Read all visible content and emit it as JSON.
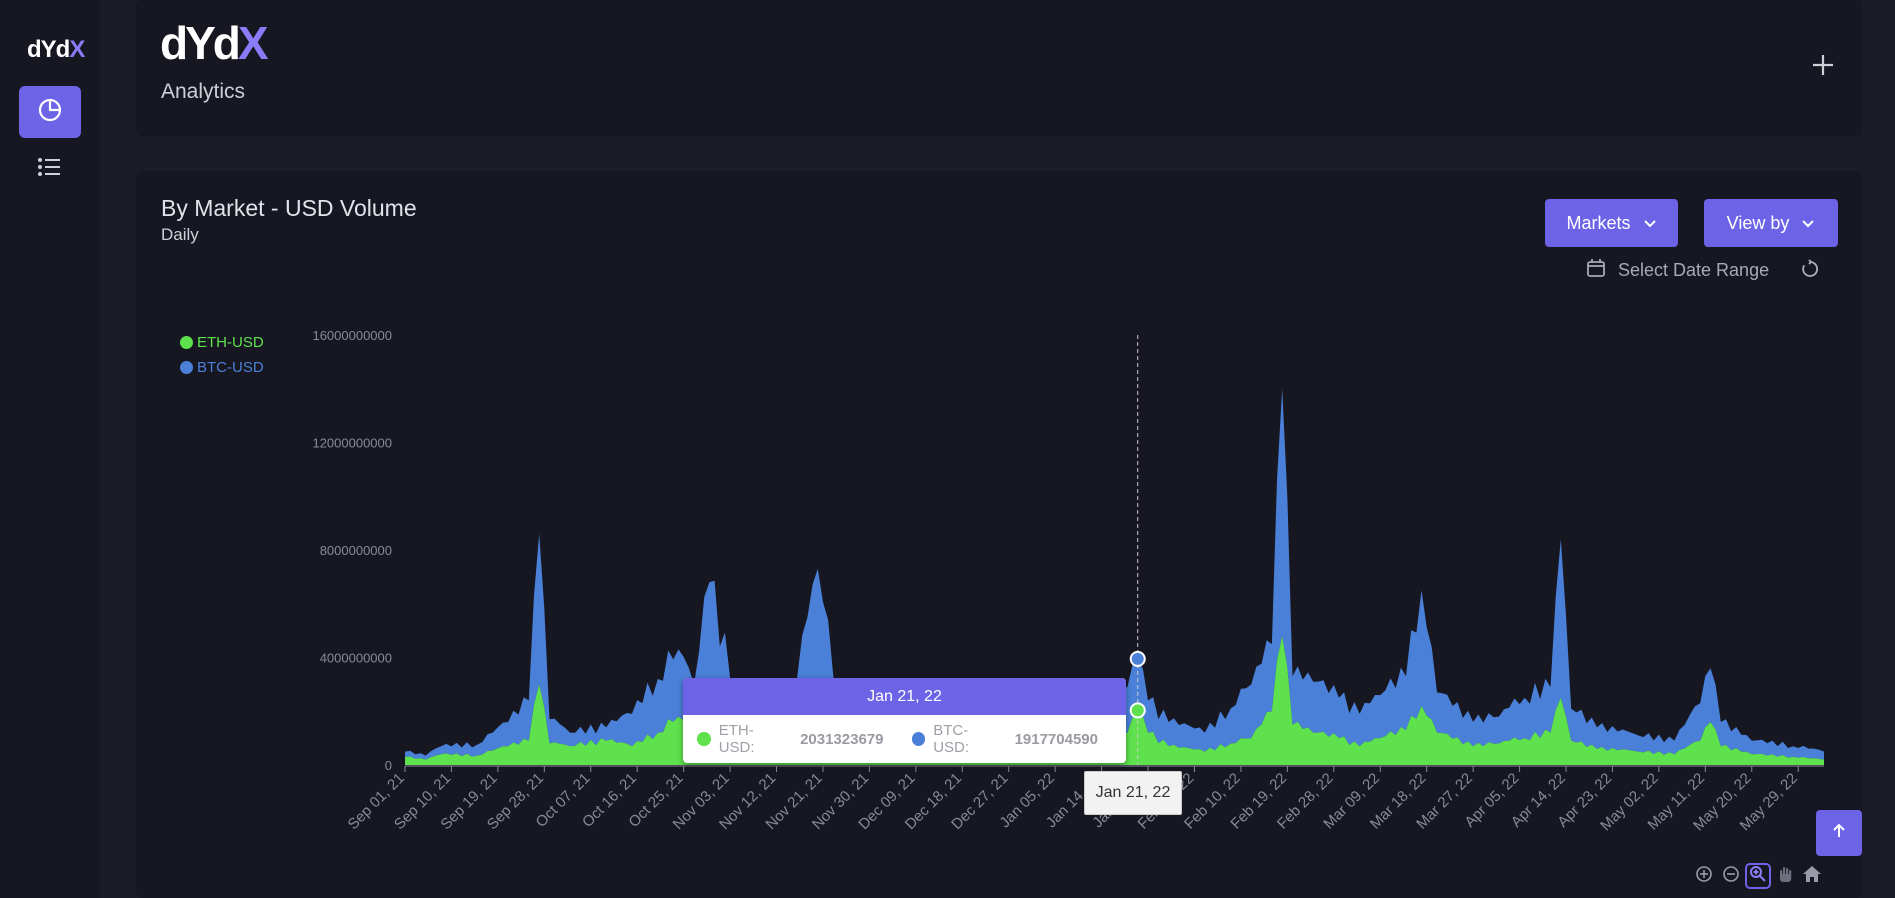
{
  "sidebar": {
    "logo_text": "dYdX",
    "items": [
      {
        "icon": "pie-chart-icon",
        "active": true
      },
      {
        "icon": "list-icon",
        "active": false
      }
    ]
  },
  "header": {
    "brand": "dYdX",
    "title": "Analytics"
  },
  "chart_panel": {
    "title": "By Market - USD Volume",
    "subtitle": "Daily",
    "markets_button": "Markets",
    "viewby_button": "View by",
    "date_range_label": "Select Date Range"
  },
  "tooltip": {
    "date": "Jan 21, 22",
    "eth_label": "ETH-USD:",
    "eth_value": "2031323679",
    "btc_label": "BTC-USD:",
    "btc_value": "1917704590",
    "x_crosshair_label": "Jan 21, 22"
  },
  "colors": {
    "accent": "#6c63e6",
    "eth": "#5ee14d",
    "btc": "#4a80d8",
    "background": "#1c1c28",
    "panel": "#171722"
  },
  "chart_data": {
    "type": "area",
    "stacked": true,
    "title": "By Market - USD Volume",
    "subtitle": "Daily",
    "legend_position": "top-left",
    "ylim": [
      0,
      16000000000
    ],
    "yticks": [
      "0",
      "4000000000",
      "8000000000",
      "12000000000",
      "16000000000"
    ],
    "x_tick_labels": [
      "Sep 01, 21",
      "Sep 10, 21",
      "Sep 19, 21",
      "Sep 28, 21",
      "Oct 07, 21",
      "Oct 16, 21",
      "Oct 25, 21",
      "Nov 03, 21",
      "Nov 12, 21",
      "Nov 21, 21",
      "Nov 30, 21",
      "Dec 09, 21",
      "Dec 18, 21",
      "Dec 27, 21",
      "Jan 05, 22",
      "Jan 14, 22",
      "Jan 23, 22",
      "Feb 01, 22",
      "Feb 10, 22",
      "Feb 19, 22",
      "Feb 28, 22",
      "Mar 09, 22",
      "Mar 18, 22",
      "Mar 27, 22",
      "Apr 05, 22",
      "Apr 14, 22",
      "Apr 23, 22",
      "May 02, 22",
      "May 11, 22",
      "May 20, 22",
      "May 29, 22"
    ],
    "x_start": "2021-09-01",
    "x_end": "2022-06-03",
    "series": [
      {
        "name": "ETH-USD",
        "keypoints": [
          [
            "2021-09-01",
            300000000
          ],
          [
            "2021-09-05",
            200000000
          ],
          [
            "2021-09-08",
            400000000
          ],
          [
            "2021-09-15",
            350000000
          ],
          [
            "2021-09-21",
            700000000
          ],
          [
            "2021-09-25",
            900000000
          ],
          [
            "2021-09-27",
            3000000000
          ],
          [
            "2021-09-29",
            800000000
          ],
          [
            "2021-10-03",
            700000000
          ],
          [
            "2021-10-10",
            900000000
          ],
          [
            "2021-10-15",
            700000000
          ],
          [
            "2021-10-20",
            1200000000
          ],
          [
            "2021-10-24",
            1800000000
          ],
          [
            "2021-10-27",
            1200000000
          ],
          [
            "2021-10-30",
            2000000000
          ],
          [
            "2021-11-05",
            800000000
          ],
          [
            "2021-11-10",
            1200000000
          ],
          [
            "2021-11-15",
            900000000
          ],
          [
            "2021-11-20",
            1700000000
          ],
          [
            "2021-11-24",
            800000000
          ],
          [
            "2021-12-01",
            1000000000
          ],
          [
            "2021-12-10",
            900000000
          ],
          [
            "2021-12-20",
            700000000
          ],
          [
            "2021-12-30",
            600000000
          ],
          [
            "2022-01-07",
            900000000
          ],
          [
            "2022-01-12",
            700000000
          ],
          [
            "2022-01-19",
            1200000000
          ],
          [
            "2022-01-21",
            2031323679
          ],
          [
            "2022-01-23",
            1200000000
          ],
          [
            "2022-01-27",
            700000000
          ],
          [
            "2022-02-03",
            500000000
          ],
          [
            "2022-02-08",
            800000000
          ],
          [
            "2022-02-12",
            1000000000
          ],
          [
            "2022-02-16",
            2000000000
          ],
          [
            "2022-02-18",
            4800000000
          ],
          [
            "2022-02-20",
            1500000000
          ],
          [
            "2022-02-24",
            1200000000
          ],
          [
            "2022-03-01",
            1000000000
          ],
          [
            "2022-03-05",
            700000000
          ],
          [
            "2022-03-09",
            1000000000
          ],
          [
            "2022-03-14",
            1300000000
          ],
          [
            "2022-03-17",
            2200000000
          ],
          [
            "2022-03-20",
            1200000000
          ],
          [
            "2022-03-27",
            700000000
          ],
          [
            "2022-04-01",
            800000000
          ],
          [
            "2022-04-06",
            1000000000
          ],
          [
            "2022-04-11",
            1200000000
          ],
          [
            "2022-04-13",
            2500000000
          ],
          [
            "2022-04-15",
            900000000
          ],
          [
            "2022-04-20",
            600000000
          ],
          [
            "2022-04-28",
            500000000
          ],
          [
            "2022-05-05",
            400000000
          ],
          [
            "2022-05-10",
            900000000
          ],
          [
            "2022-05-12",
            1600000000
          ],
          [
            "2022-05-14",
            700000000
          ],
          [
            "2022-05-20",
            400000000
          ],
          [
            "2022-05-28",
            300000000
          ],
          [
            "2022-06-03",
            200000000
          ]
        ]
      },
      {
        "name": "BTC-USD",
        "keypoints": [
          [
            "2021-09-01",
            200000000
          ],
          [
            "2021-09-05",
            150000000
          ],
          [
            "2021-09-08",
            300000000
          ],
          [
            "2021-09-15",
            400000000
          ],
          [
            "2021-09-21",
            900000000
          ],
          [
            "2021-09-25",
            1500000000
          ],
          [
            "2021-09-27",
            5600000000
          ],
          [
            "2021-09-29",
            900000000
          ],
          [
            "2021-10-03",
            500000000
          ],
          [
            "2021-10-10",
            500000000
          ],
          [
            "2021-10-15",
            1200000000
          ],
          [
            "2021-10-20",
            2000000000
          ],
          [
            "2021-10-24",
            2500000000
          ],
          [
            "2021-10-27",
            1800000000
          ],
          [
            "2021-10-30",
            4800000000
          ],
          [
            "2021-11-05",
            1000000000
          ],
          [
            "2021-11-10",
            1400000000
          ],
          [
            "2021-11-15",
            1500000000
          ],
          [
            "2021-11-20",
            5600000000
          ],
          [
            "2021-11-24",
            1500000000
          ],
          [
            "2021-12-01",
            1500000000
          ],
          [
            "2021-12-10",
            1100000000
          ],
          [
            "2021-12-20",
            900000000
          ],
          [
            "2021-12-30",
            900000000
          ],
          [
            "2022-01-07",
            1600000000
          ],
          [
            "2022-01-12",
            1300000000
          ],
          [
            "2022-01-19",
            1700000000
          ],
          [
            "2022-01-21",
            1917704590
          ],
          [
            "2022-01-23",
            1200000000
          ],
          [
            "2022-01-27",
            900000000
          ],
          [
            "2022-02-03",
            700000000
          ],
          [
            "2022-02-08",
            1300000000
          ],
          [
            "2022-02-12",
            2000000000
          ],
          [
            "2022-02-16",
            2500000000
          ],
          [
            "2022-02-18",
            9200000000
          ],
          [
            "2022-02-20",
            1800000000
          ],
          [
            "2022-02-24",
            1900000000
          ],
          [
            "2022-03-01",
            1500000000
          ],
          [
            "2022-03-05",
            1200000000
          ],
          [
            "2022-03-09",
            1600000000
          ],
          [
            "2022-03-14",
            2000000000
          ],
          [
            "2022-03-17",
            4300000000
          ],
          [
            "2022-03-20",
            1500000000
          ],
          [
            "2022-03-27",
            900000000
          ],
          [
            "2022-04-01",
            1000000000
          ],
          [
            "2022-04-06",
            1500000000
          ],
          [
            "2022-04-11",
            1700000000
          ],
          [
            "2022-04-13",
            5900000000
          ],
          [
            "2022-04-15",
            1200000000
          ],
          [
            "2022-04-20",
            800000000
          ],
          [
            "2022-04-28",
            600000000
          ],
          [
            "2022-05-05",
            500000000
          ],
          [
            "2022-05-10",
            1400000000
          ],
          [
            "2022-05-12",
            2000000000
          ],
          [
            "2022-05-14",
            900000000
          ],
          [
            "2022-05-20",
            500000000
          ],
          [
            "2022-05-28",
            400000000
          ],
          [
            "2022-06-03",
            300000000
          ]
        ]
      }
    ],
    "highlight": {
      "date": "2022-01-21",
      "ETH-USD": 2031323679,
      "BTC-USD": 1917704590
    }
  }
}
